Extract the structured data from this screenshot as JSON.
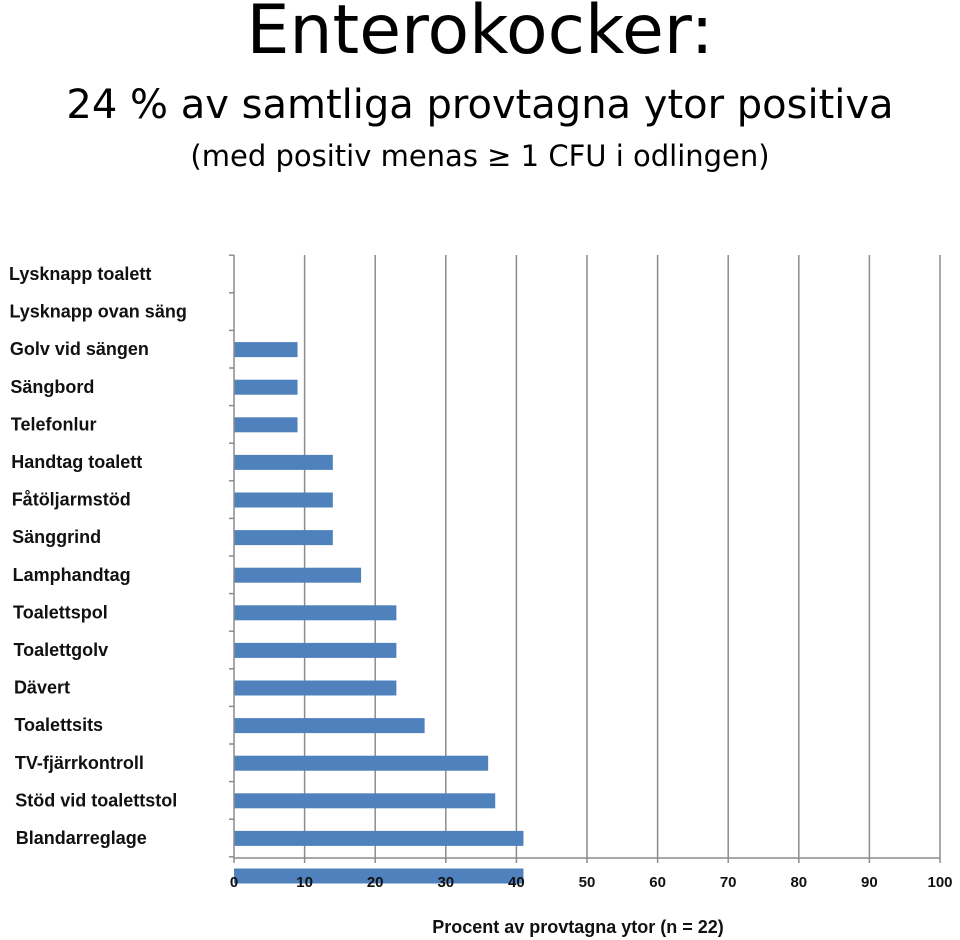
{
  "header": {
    "title": "Enterokocker:",
    "subtitle": "24 % av samtliga provtagna ytor positiva",
    "note": "(med positiv menas ≥ 1 CFU i odlingen)"
  },
  "chart_data": {
    "type": "bar",
    "orientation": "horizontal",
    "categories": [
      "Lysknapp toalett",
      "Lysknapp ovan säng",
      "Golv vid sängen",
      "Sängbord",
      "Telefonlur",
      "Handtag toalett",
      "Fåtöljarmstöd",
      "Sänggrind",
      "Lamphandtag",
      "Toalettspol",
      "Toalettgolv",
      "Dävert",
      "Toalettsits",
      "TV-fjärrkontroll",
      "Stöd vid toalettstol",
      "Blandarreglage"
    ],
    "values": [
      0,
      9,
      9,
      9,
      14,
      14,
      14,
      18,
      23,
      23,
      23,
      27,
      36,
      37,
      41,
      41
    ],
    "xlabel": "Procent av provtagna ytor (n = 22)",
    "xlim": [
      0,
      100
    ],
    "xticks": [
      "0",
      "10",
      "20",
      "30",
      "40",
      "50",
      "60",
      "70",
      "80",
      "90",
      "100"
    ],
    "grid": "vertical",
    "bar_color": "#4F81BD"
  }
}
